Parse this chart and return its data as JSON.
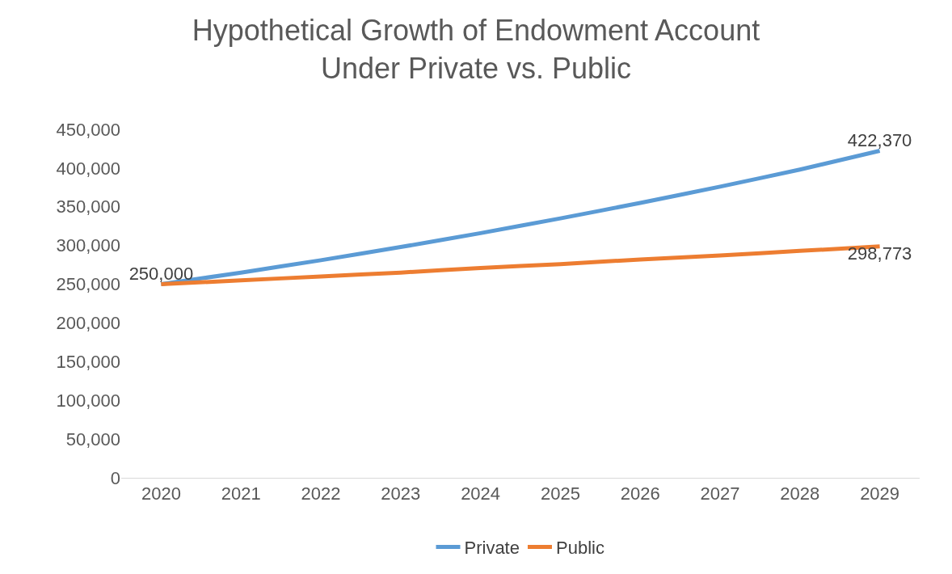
{
  "chart_data": {
    "type": "line",
    "title": "Hypothetical Growth of Endowment Account\nUnder Private vs. Public",
    "categories": [
      "2020",
      "2021",
      "2022",
      "2023",
      "2024",
      "2025",
      "2026",
      "2027",
      "2028",
      "2029"
    ],
    "series": [
      {
        "name": "Private",
        "color": "#5b9bd5",
        "values": [
          250000,
          265000,
          281000,
          298000,
          316000,
          335000,
          355000,
          376000,
          398000,
          422370
        ],
        "value_labels": [
          "250,000",
          null,
          null,
          null,
          null,
          null,
          null,
          null,
          null,
          "422,370"
        ]
      },
      {
        "name": "Public",
        "color": "#ed7d31",
        "values": [
          250000,
          255000,
          260000,
          265000,
          271000,
          276000,
          282000,
          287000,
          293000,
          298773
        ],
        "value_labels": [
          null,
          null,
          null,
          null,
          null,
          null,
          null,
          null,
          null,
          "298,773"
        ]
      }
    ],
    "ylim": [
      0,
      450000
    ],
    "yticks": [
      {
        "value": 0,
        "label": "0"
      },
      {
        "value": 50000,
        "label": "50,000"
      },
      {
        "value": 100000,
        "label": "100,000"
      },
      {
        "value": 150000,
        "label": "150,000"
      },
      {
        "value": 200000,
        "label": "200,000"
      },
      {
        "value": 250000,
        "label": "250,000"
      },
      {
        "value": 300000,
        "label": "300,000"
      },
      {
        "value": 350000,
        "label": "350,000"
      },
      {
        "value": 400000,
        "label": "400,000"
      },
      {
        "value": 450000,
        "label": "450,000"
      }
    ],
    "grid": false,
    "legend": "bottom",
    "marker": "none",
    "line_style": "solid"
  }
}
